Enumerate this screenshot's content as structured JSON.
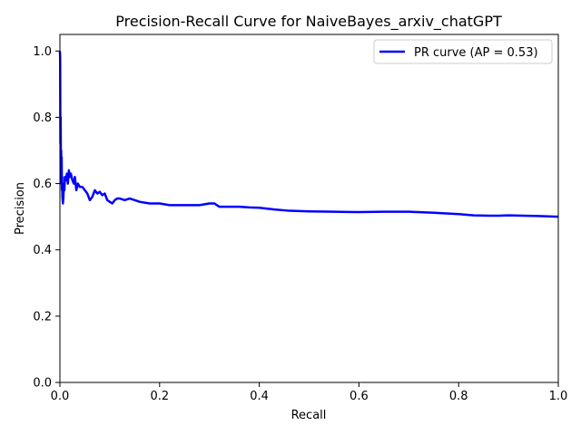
{
  "chart_data": {
    "type": "line",
    "title": "Precision-Recall Curve for NaiveBayes_arxiv_chatGPT",
    "xlabel": "Recall",
    "ylabel": "Precision",
    "xlim": [
      0.0,
      1.0
    ],
    "ylim": [
      0.0,
      1.05
    ],
    "x_ticks": [
      "0.0",
      "0.2",
      "0.4",
      "0.6",
      "0.8",
      "1.0"
    ],
    "y_ticks": [
      "0.0",
      "0.2",
      "0.4",
      "0.6",
      "0.8",
      "1.0"
    ],
    "grid": false,
    "legend_position": "upper right",
    "series": [
      {
        "name": "PR curve (AP = 0.53)",
        "color": "#0000ff",
        "x": [
          0.0,
          0.0005,
          0.001,
          0.0015,
          0.002,
          0.0025,
          0.003,
          0.0035,
          0.004,
          0.0045,
          0.005,
          0.006,
          0.007,
          0.008,
          0.009,
          0.01,
          0.012,
          0.014,
          0.016,
          0.018,
          0.02,
          0.022,
          0.025,
          0.028,
          0.03,
          0.033,
          0.036,
          0.04,
          0.045,
          0.05,
          0.055,
          0.06,
          0.065,
          0.07,
          0.075,
          0.08,
          0.085,
          0.09,
          0.095,
          0.1,
          0.105,
          0.11,
          0.115,
          0.12,
          0.13,
          0.14,
          0.15,
          0.16,
          0.18,
          0.2,
          0.22,
          0.24,
          0.26,
          0.28,
          0.3,
          0.31,
          0.32,
          0.34,
          0.36,
          0.38,
          0.4,
          0.43,
          0.46,
          0.5,
          0.55,
          0.6,
          0.65,
          0.7,
          0.75,
          0.8,
          0.83,
          0.86,
          0.88,
          0.9,
          0.93,
          0.96,
          1.0
        ],
        "y": [
          1.0,
          0.98,
          0.72,
          0.8,
          0.66,
          0.7,
          0.6,
          0.68,
          0.58,
          0.62,
          0.56,
          0.54,
          0.56,
          0.6,
          0.58,
          0.62,
          0.61,
          0.63,
          0.6,
          0.64,
          0.62,
          0.63,
          0.61,
          0.6,
          0.62,
          0.58,
          0.6,
          0.59,
          0.59,
          0.58,
          0.57,
          0.55,
          0.56,
          0.58,
          0.57,
          0.575,
          0.565,
          0.57,
          0.55,
          0.545,
          0.54,
          0.55,
          0.555,
          0.555,
          0.55,
          0.555,
          0.55,
          0.545,
          0.54,
          0.54,
          0.535,
          0.535,
          0.535,
          0.535,
          0.54,
          0.54,
          0.53,
          0.53,
          0.53,
          0.528,
          0.527,
          0.522,
          0.518,
          0.516,
          0.515,
          0.514,
          0.515,
          0.515,
          0.512,
          0.508,
          0.504,
          0.503,
          0.503,
          0.504,
          0.503,
          0.502,
          0.5
        ]
      }
    ]
  }
}
